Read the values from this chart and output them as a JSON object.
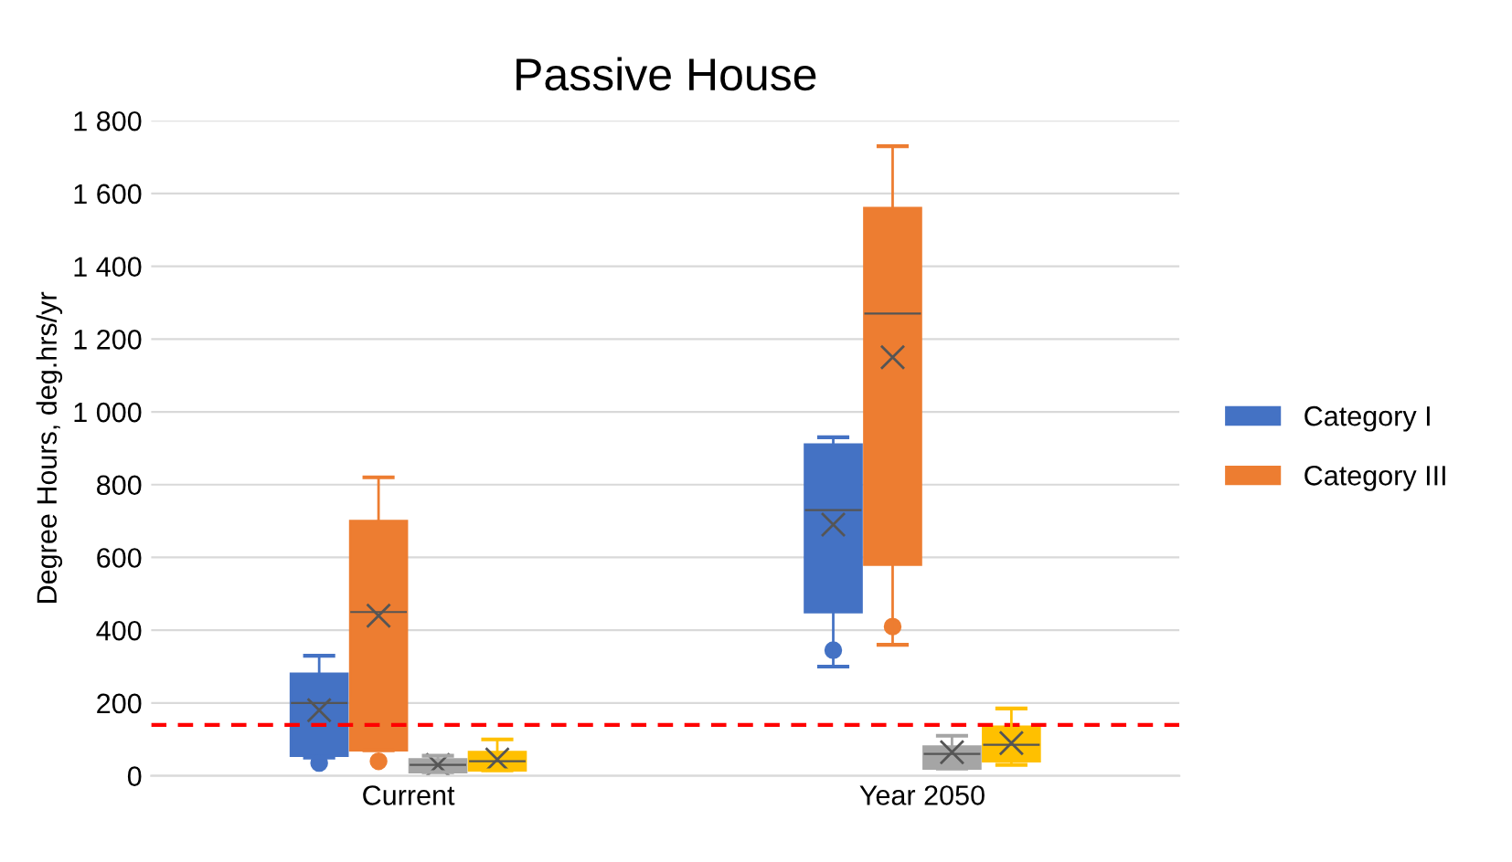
{
  "chart_data": {
    "type": "box",
    "title": "Passive House",
    "ylabel": "Degree Hours, deg.hrs/yr",
    "categories": [
      "Current",
      "Year 2050"
    ],
    "series": [
      {
        "name": "Category I",
        "color": "#4472c4",
        "boxes": [
          {
            "low": 50,
            "q1": 55,
            "median": 200,
            "q3": 280,
            "high": 330,
            "mean": 180,
            "outliers": [
              35
            ]
          },
          {
            "low": 300,
            "q1": 450,
            "median": 730,
            "q3": 910,
            "high": 930,
            "mean": 690,
            "outliers": [
              345
            ]
          }
        ]
      },
      {
        "name": "Category III",
        "color": "#ed7d31",
        "boxes": [
          {
            "low": 70,
            "q1": 70,
            "median": 450,
            "q3": 700,
            "high": 820,
            "mean": 440,
            "outliers": [
              40
            ]
          },
          {
            "low": 360,
            "q1": 580,
            "median": 1270,
            "q3": 1560,
            "high": 1730,
            "mean": 1150,
            "outliers": [
              410
            ]
          }
        ]
      },
      {
        "color": "#a5a5a5",
        "boxes": [
          {
            "low": 10,
            "q1": 10,
            "median": 30,
            "q3": 45,
            "high": 55,
            "mean": 30
          },
          {
            "low": 20,
            "q1": 20,
            "median": 60,
            "q3": 80,
            "high": 110,
            "mean": 65
          }
        ]
      },
      {
        "color": "#ffc000",
        "boxes": [
          {
            "low": 15,
            "q1": 15,
            "median": 40,
            "q3": 65,
            "high": 100,
            "mean": 45
          },
          {
            "low": 30,
            "q1": 40,
            "median": 85,
            "q3": 135,
            "high": 185,
            "mean": 90
          }
        ]
      }
    ],
    "ylim": [
      0,
      1800
    ],
    "yticks": [
      0,
      200,
      400,
      600,
      800,
      {
        "value": 1000,
        "label": "1 000"
      },
      {
        "value": 1200,
        "label": "1 200"
      },
      {
        "value": 1400,
        "label": "1 400"
      },
      {
        "value": 1600,
        "label": "1 600"
      },
      {
        "value": 1800,
        "label": "1 800"
      }
    ],
    "ref_lines": [
      {
        "axis": "y",
        "value": 140,
        "color": "#ff0000",
        "line_style": "dashed"
      }
    ],
    "grid": "y",
    "legend": "right"
  }
}
